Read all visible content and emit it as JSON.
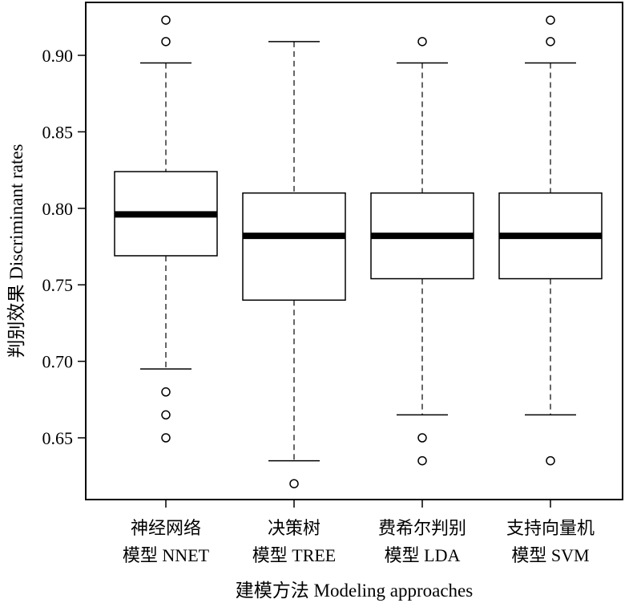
{
  "chart_data": {
    "type": "boxplot",
    "xlabel": "建模方法 Modeling approaches",
    "ylabel": "判别效果 Discriminant rates",
    "ylim": [
      0.615,
      0.935
    ],
    "yticks": [
      {
        "value": 0.65,
        "label": "0.65"
      },
      {
        "value": 0.7,
        "label": "0.70"
      },
      {
        "value": 0.75,
        "label": "0.75"
      },
      {
        "value": 0.8,
        "label": "0.80"
      },
      {
        "value": 0.85,
        "label": "0.85"
      },
      {
        "value": 0.9,
        "label": "0.90"
      }
    ],
    "grid": false,
    "boxes": [
      {
        "label_line1": "神经网络",
        "label_line2": "模型 NNET",
        "whisker_low": 0.695,
        "q1": 0.769,
        "median": 0.796,
        "q3": 0.824,
        "whisker_high": 0.895,
        "outliers": [
          0.923,
          0.909,
          0.68,
          0.665,
          0.65
        ]
      },
      {
        "label_line1": "决策树",
        "label_line2": "模型 TREE",
        "whisker_low": 0.635,
        "q1": 0.74,
        "median": 0.782,
        "q3": 0.81,
        "whisker_high": 0.909,
        "outliers": [
          0.62
        ]
      },
      {
        "label_line1": "费希尔判别",
        "label_line2": "模型 LDA",
        "whisker_low": 0.665,
        "q1": 0.754,
        "median": 0.782,
        "q3": 0.81,
        "whisker_high": 0.895,
        "outliers": [
          0.909,
          0.65,
          0.635
        ]
      },
      {
        "label_line1": "支持向量机",
        "label_line2": "模型 SVM",
        "whisker_low": 0.665,
        "q1": 0.754,
        "median": 0.782,
        "q3": 0.81,
        "whisker_high": 0.895,
        "outliers": [
          0.923,
          0.909,
          0.635
        ]
      }
    ]
  }
}
